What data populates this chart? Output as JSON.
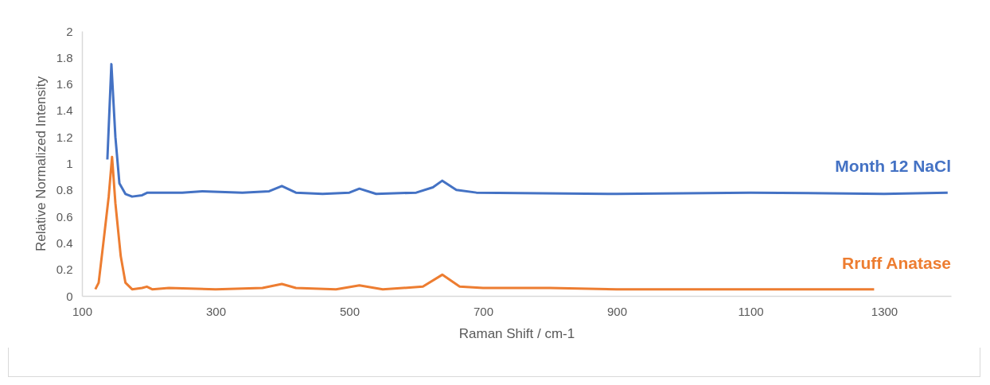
{
  "chart_data": {
    "type": "line",
    "xlabel": "Raman Shift / cm-1",
    "ylabel": "Relative Normalized Intensity",
    "xlim": [
      100,
      1400
    ],
    "xticks": [
      100,
      300,
      500,
      700,
      900,
      1100,
      1300
    ],
    "ylim": [
      0,
      2
    ],
    "yticks": [
      0,
      0.2,
      0.4,
      0.6,
      0.8,
      1,
      1.2,
      1.4,
      1.6,
      1.8,
      2
    ],
    "grid": false,
    "legend": false,
    "marker": "none",
    "line_style": "solid",
    "series": [
      {
        "name": "Month 12 NaCl",
        "color": "#4472c4",
        "x": [
          138,
          144,
          150,
          156,
          165,
          175,
          190,
          198,
          250,
          280,
          340,
          380,
          399,
          420,
          460,
          500,
          515,
          540,
          600,
          625,
          639,
          660,
          690,
          900,
          1100,
          1300,
          1395
        ],
        "values": [
          1.03,
          1.75,
          1.2,
          0.85,
          0.77,
          0.75,
          0.76,
          0.78,
          0.78,
          0.79,
          0.78,
          0.79,
          0.83,
          0.78,
          0.77,
          0.78,
          0.81,
          0.77,
          0.78,
          0.82,
          0.87,
          0.8,
          0.78,
          0.77,
          0.78,
          0.77,
          0.78
        ]
      },
      {
        "name": "Rruff Anatase",
        "color": "#ed7d31",
        "x": [
          120,
          125,
          132,
          140,
          145,
          150,
          158,
          165,
          175,
          190,
          197,
          205,
          230,
          300,
          370,
          399,
          420,
          480,
          515,
          550,
          610,
          639,
          665,
          700,
          800,
          900,
          1285
        ],
        "values": [
          0.05,
          0.1,
          0.4,
          0.75,
          1.05,
          0.7,
          0.3,
          0.1,
          0.05,
          0.06,
          0.07,
          0.05,
          0.06,
          0.05,
          0.06,
          0.09,
          0.06,
          0.05,
          0.08,
          0.05,
          0.07,
          0.16,
          0.07,
          0.06,
          0.06,
          0.05,
          0.05
        ]
      }
    ]
  }
}
